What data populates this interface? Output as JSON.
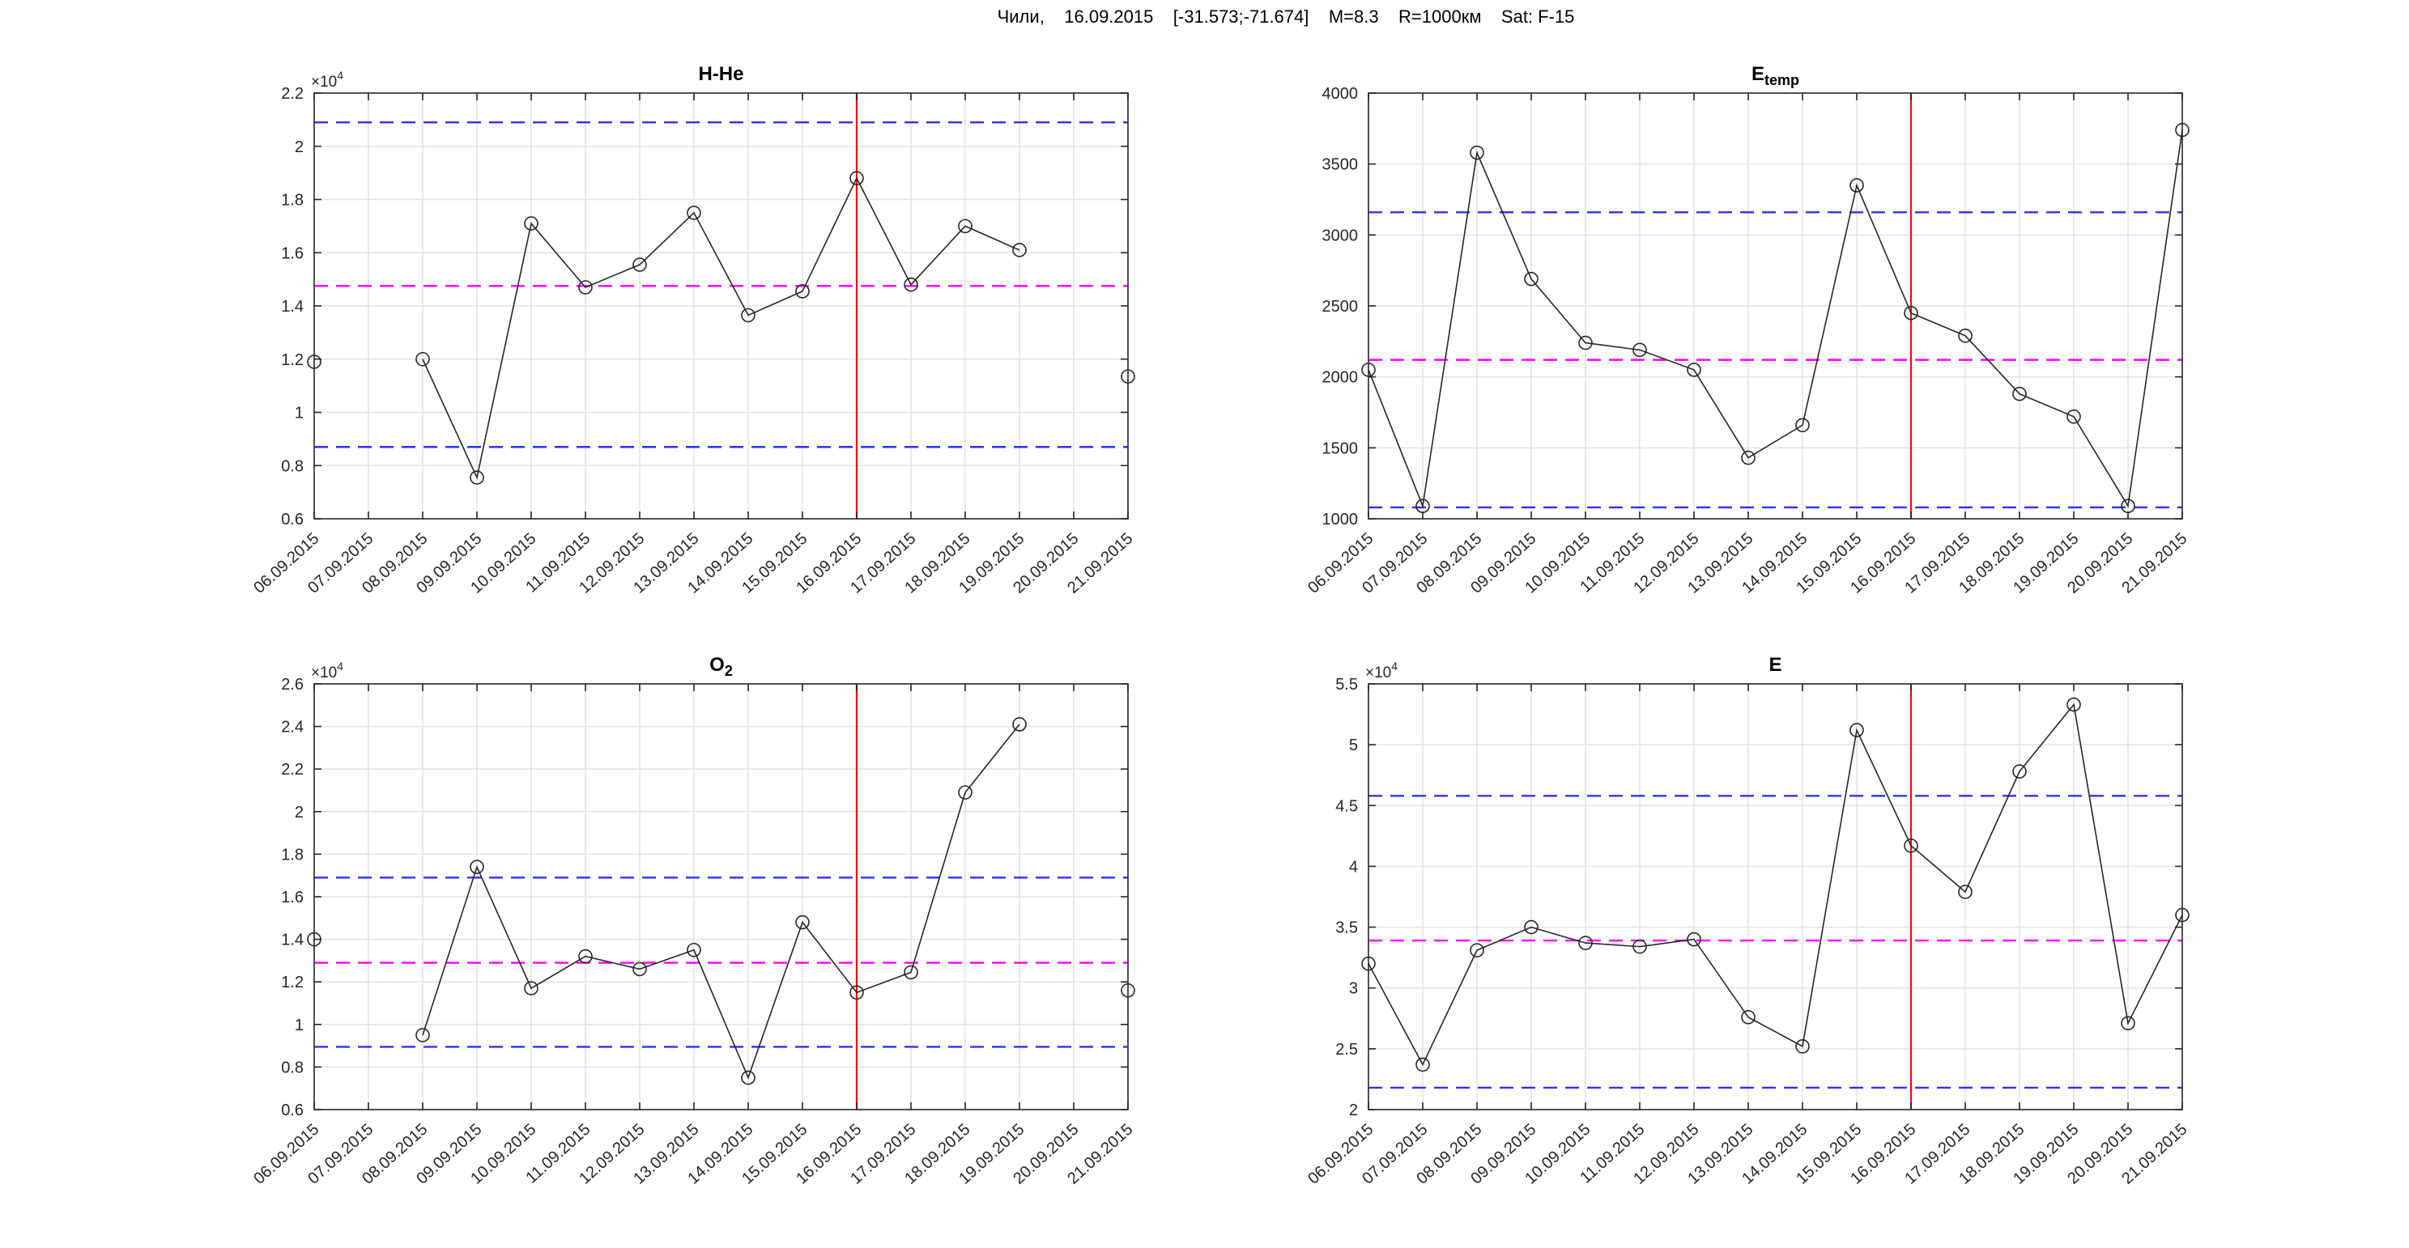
{
  "figure_title": {
    "text": "Чили,    16.09.2015    [-31.573;-71.674]    M=8.3    R=1000км    Sat: F-15",
    "location": "Чили",
    "event_date": "16.09.2015",
    "coordinates": "[-31.573;-71.674]",
    "magnitude": "M=8.3",
    "radius": "R=1000км",
    "satellite": "Sat: F-15"
  },
  "x_categories": [
    "06.09.2015",
    "07.09.2015",
    "08.09.2015",
    "09.09.2015",
    "10.09.2015",
    "11.09.2015",
    "12.09.2015",
    "13.09.2015",
    "14.09.2015",
    "15.09.2015",
    "16.09.2015",
    "17.09.2015",
    "18.09.2015",
    "19.09.2015",
    "20.09.2015",
    "21.09.2015"
  ],
  "event_date": "16.09.2015",
  "colors": {
    "background": "#ffffff",
    "axis": "#262626",
    "grid": "#e2e2e2",
    "series": "#262626",
    "bound_line": "#3030f0",
    "mean_line": "#ff00ff",
    "event_line": "#f50a00"
  },
  "chart_data": [
    {
      "id": "h_he",
      "type": "line",
      "title": "H-He",
      "title_sub": "",
      "y_multiplier": "×10",
      "y_multiplier_exp": "4",
      "scale_factor": 10000,
      "grid": true,
      "legend": "none",
      "categories": [
        "06.09.2015",
        "07.09.2015",
        "08.09.2015",
        "09.09.2015",
        "10.09.2015",
        "11.09.2015",
        "12.09.2015",
        "13.09.2015",
        "14.09.2015",
        "15.09.2015",
        "16.09.2015",
        "17.09.2015",
        "18.09.2015",
        "19.09.2015",
        "20.09.2015",
        "21.09.2015"
      ],
      "values": [
        1.19,
        null,
        1.2,
        0.755,
        1.71,
        1.47,
        1.555,
        1.75,
        1.365,
        1.455,
        1.88,
        1.48,
        1.7,
        1.61,
        null,
        1.135
      ],
      "ylim": [
        0.6,
        2.2
      ],
      "ytick_step": 0.2,
      "bounds": {
        "upper": 2.09,
        "mean": 1.475,
        "lower": 0.87
      },
      "event_index": 10
    },
    {
      "id": "e_temp",
      "type": "line",
      "title": "E",
      "title_sub": "temp",
      "y_multiplier": null,
      "y_multiplier_exp": null,
      "scale_factor": 1,
      "grid": true,
      "legend": "none",
      "categories": [
        "06.09.2015",
        "07.09.2015",
        "08.09.2015",
        "09.09.2015",
        "10.09.2015",
        "11.09.2015",
        "12.09.2015",
        "13.09.2015",
        "14.09.2015",
        "15.09.2015",
        "16.09.2015",
        "17.09.2015",
        "18.09.2015",
        "19.09.2015",
        "20.09.2015",
        "21.09.2015"
      ],
      "values": [
        2050,
        1090,
        3580,
        2690,
        2240,
        2190,
        2050,
        1430,
        1660,
        3350,
        2450,
        2290,
        1880,
        1720,
        1090,
        3740
      ],
      "ylim": [
        1000,
        4000
      ],
      "ytick_step": 500,
      "bounds": {
        "upper": 3160,
        "mean": 2120,
        "lower": 1080
      },
      "event_index": 10
    },
    {
      "id": "o2",
      "type": "line",
      "title": "O",
      "title_sub": "2",
      "y_multiplier": "×10",
      "y_multiplier_exp": "4",
      "scale_factor": 10000,
      "grid": true,
      "legend": "none",
      "categories": [
        "06.09.2015",
        "07.09.2015",
        "08.09.2015",
        "09.09.2015",
        "10.09.2015",
        "11.09.2015",
        "12.09.2015",
        "13.09.2015",
        "14.09.2015",
        "15.09.2015",
        "16.09.2015",
        "17.09.2015",
        "18.09.2015",
        "19.09.2015",
        "20.09.2015",
        "21.09.2015"
      ],
      "values": [
        1.4,
        null,
        0.95,
        1.74,
        1.17,
        1.32,
        1.26,
        1.35,
        0.75,
        1.48,
        1.15,
        1.245,
        2.09,
        2.41,
        null,
        1.16
      ],
      "ylim": [
        0.6,
        2.6
      ],
      "ytick_step": 0.2,
      "bounds": {
        "upper": 1.69,
        "mean": 1.29,
        "lower": 0.895
      },
      "event_index": 10
    },
    {
      "id": "e",
      "type": "line",
      "title": "E",
      "title_sub": "",
      "y_multiplier": "×10",
      "y_multiplier_exp": "4",
      "scale_factor": 10000,
      "grid": true,
      "legend": "none",
      "categories": [
        "06.09.2015",
        "07.09.2015",
        "08.09.2015",
        "09.09.2015",
        "10.09.2015",
        "11.09.2015",
        "12.09.2015",
        "13.09.2015",
        "14.09.2015",
        "15.09.2015",
        "16.09.2015",
        "17.09.2015",
        "18.09.2015",
        "19.09.2015",
        "20.09.2015",
        "21.09.2015"
      ],
      "values": [
        3.2,
        2.37,
        3.31,
        3.5,
        3.37,
        3.34,
        3.4,
        2.76,
        2.52,
        5.12,
        4.17,
        3.79,
        4.78,
        5.33,
        2.71,
        3.6
      ],
      "ylim": [
        2,
        5.5
      ],
      "ytick_step": 0.5,
      "bounds": {
        "upper": 4.58,
        "mean": 3.39,
        "lower": 2.18
      },
      "event_index": 10
    }
  ]
}
